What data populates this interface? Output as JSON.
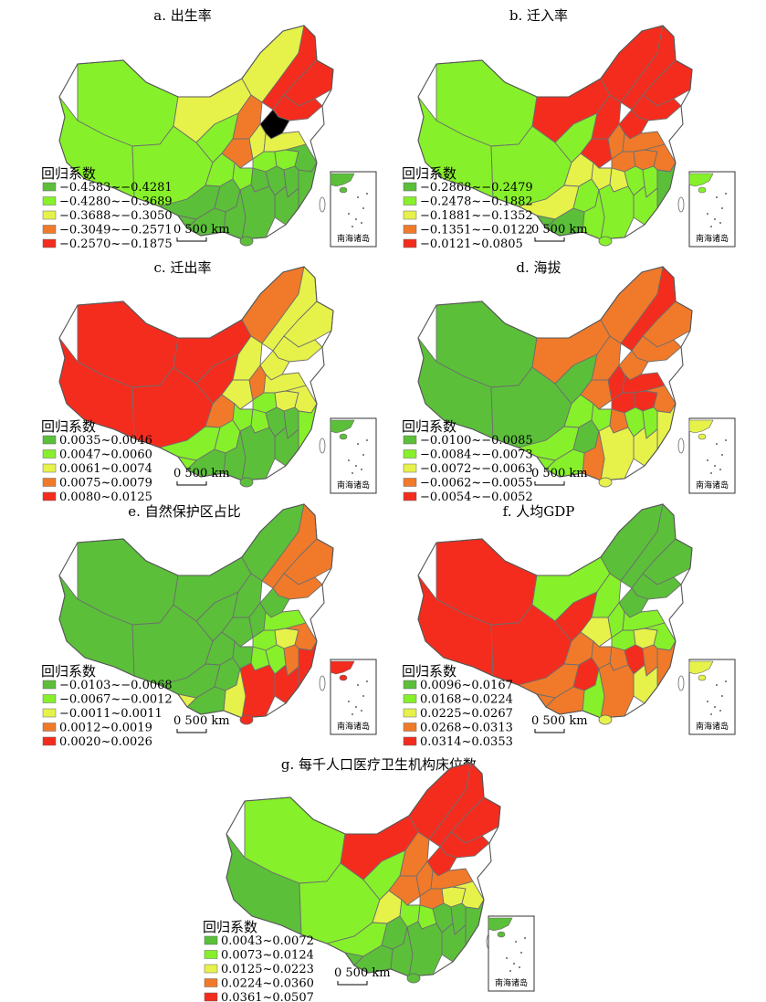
{
  "figure": {
    "colors": [
      "#5bbf3a",
      "#86f02a",
      "#e6f24a",
      "#f07a2a",
      "#f42c1e"
    ],
    "legend_title": "回归系数",
    "scale_label": "0  500 km",
    "inset_label": "南海诸岛",
    "panels": [
      {
        "key": "a",
        "title": "a. 出生率",
        "classes": [
          "−0.4583~−0.4281",
          "−0.4280~−0.3689",
          "−0.3688~−0.3050",
          "−0.3049~−0.2571",
          "−0.2570~−0.1875"
        ],
        "regions": [
          1,
          1,
          1,
          2,
          2,
          1,
          1,
          3,
          3,
          4,
          4,
          4,
          5,
          2,
          2,
          1,
          0,
          1,
          0,
          0,
          1,
          0,
          0,
          0,
          0,
          0,
          0,
          0,
          0,
          0
        ]
      },
      {
        "key": "b",
        "title": "b. 迁入率",
        "classes": [
          "−0.2868~−0.2479",
          "−0.2478~−0.1882",
          "−0.1881~−0.1352",
          "−0.1351~−0.0122",
          "−0.0121~0.0805"
        ],
        "regions": [
          1,
          1,
          1,
          4,
          4,
          1,
          2,
          4,
          4,
          4,
          4,
          4,
          4,
          3,
          3,
          3,
          2,
          3,
          3,
          1,
          2,
          2,
          1,
          1,
          0,
          1,
          1,
          1,
          0,
          0
        ]
      },
      {
        "key": "c",
        "title": "c. 迁出率",
        "classes": [
          "0.0035~0.0046",
          "0.0047~0.0060",
          "0.0061~0.0074",
          "0.0075~0.0079",
          "0.0080~0.0125"
        ],
        "regions": [
          4,
          4,
          4,
          4,
          3,
          4,
          3,
          2,
          2,
          2,
          2,
          2,
          2,
          3,
          2,
          1,
          1,
          2,
          2,
          1,
          1,
          1,
          0,
          0,
          1,
          0,
          0,
          0,
          0,
          1
        ]
      },
      {
        "key": "d",
        "title": "d. 海拔",
        "classes": [
          "−0.0100~−0.0085",
          "−0.0084~−0.0073",
          "−0.0072~−0.0063",
          "−0.0062~−0.0055",
          "−0.0054~−0.0052"
        ],
        "regions": [
          0,
          0,
          0,
          3,
          3,
          0,
          1,
          3,
          3,
          4,
          3,
          3,
          3,
          4,
          4,
          4,
          1,
          4,
          3,
          0,
          1,
          3,
          1,
          1,
          2,
          2,
          2,
          3,
          1,
          1
        ]
      },
      {
        "key": "e",
        "title": "e. 自然保护区占比",
        "classes": [
          "−0.0103~−0.0068",
          "−0.0067~−0.0012",
          "−0.0011~0.0011",
          "0.0012~0.0019",
          "0.0020~0.0026"
        ],
        "regions": [
          0,
          0,
          0,
          0,
          0,
          0,
          0,
          0,
          0,
          3,
          3,
          3,
          0,
          0,
          1,
          1,
          0,
          2,
          3,
          0,
          0,
          1,
          1,
          3,
          4,
          4,
          4,
          2,
          0,
          2
        ]
      },
      {
        "key": "f",
        "title": "f. 人均GDP",
        "classes": [
          "0.0096~0.0167",
          "0.0168~0.0224",
          "0.0225~0.0267",
          "0.0268~0.0313",
          "0.0314~0.0353"
        ],
        "regions": [
          4,
          4,
          4,
          1,
          0,
          4,
          3,
          1,
          2,
          0,
          0,
          0,
          0,
          1,
          1,
          1,
          3,
          2,
          1,
          4,
          3,
          3,
          4,
          3,
          3,
          2,
          3,
          1,
          3,
          3
        ]
      },
      {
        "key": "g",
        "title": "g. 每千人口医疗卫生机构床位数",
        "classes": [
          "0.0043~0.0072",
          "0.0073~0.0124",
          "0.0125~0.0223",
          "0.0224~0.0360",
          "0.0361~0.0507"
        ],
        "regions": [
          1,
          0,
          1,
          4,
          4,
          1,
          2,
          3,
          3,
          4,
          4,
          4,
          4,
          3,
          3,
          3,
          1,
          2,
          2,
          0,
          1,
          1,
          0,
          0,
          0,
          0,
          0,
          0,
          0,
          0
        ]
      }
    ]
  }
}
